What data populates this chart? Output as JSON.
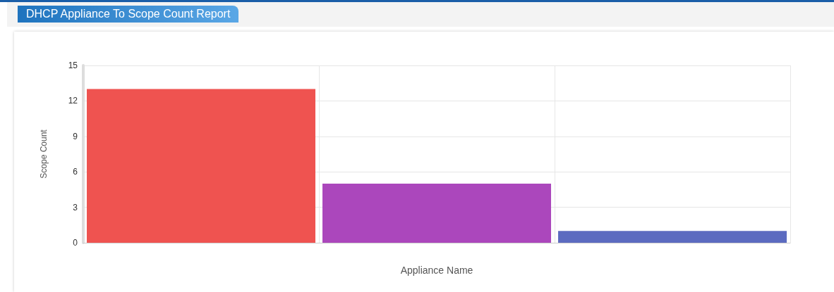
{
  "chart_data": {
    "type": "bar",
    "title": "DHCP Appliance To Scope Count Report",
    "xlabel": "Appliance Name",
    "ylabel": "Scope Count",
    "categories": [
      null,
      null,
      null
    ],
    "values": [
      13,
      5,
      1
    ],
    "colors": [
      "#ef5350",
      "#ab47bc",
      "#5c6bc0"
    ],
    "ylim": [
      0,
      15
    ],
    "yticks": [
      0,
      3,
      6,
      9,
      12,
      15
    ],
    "grid": true
  }
}
